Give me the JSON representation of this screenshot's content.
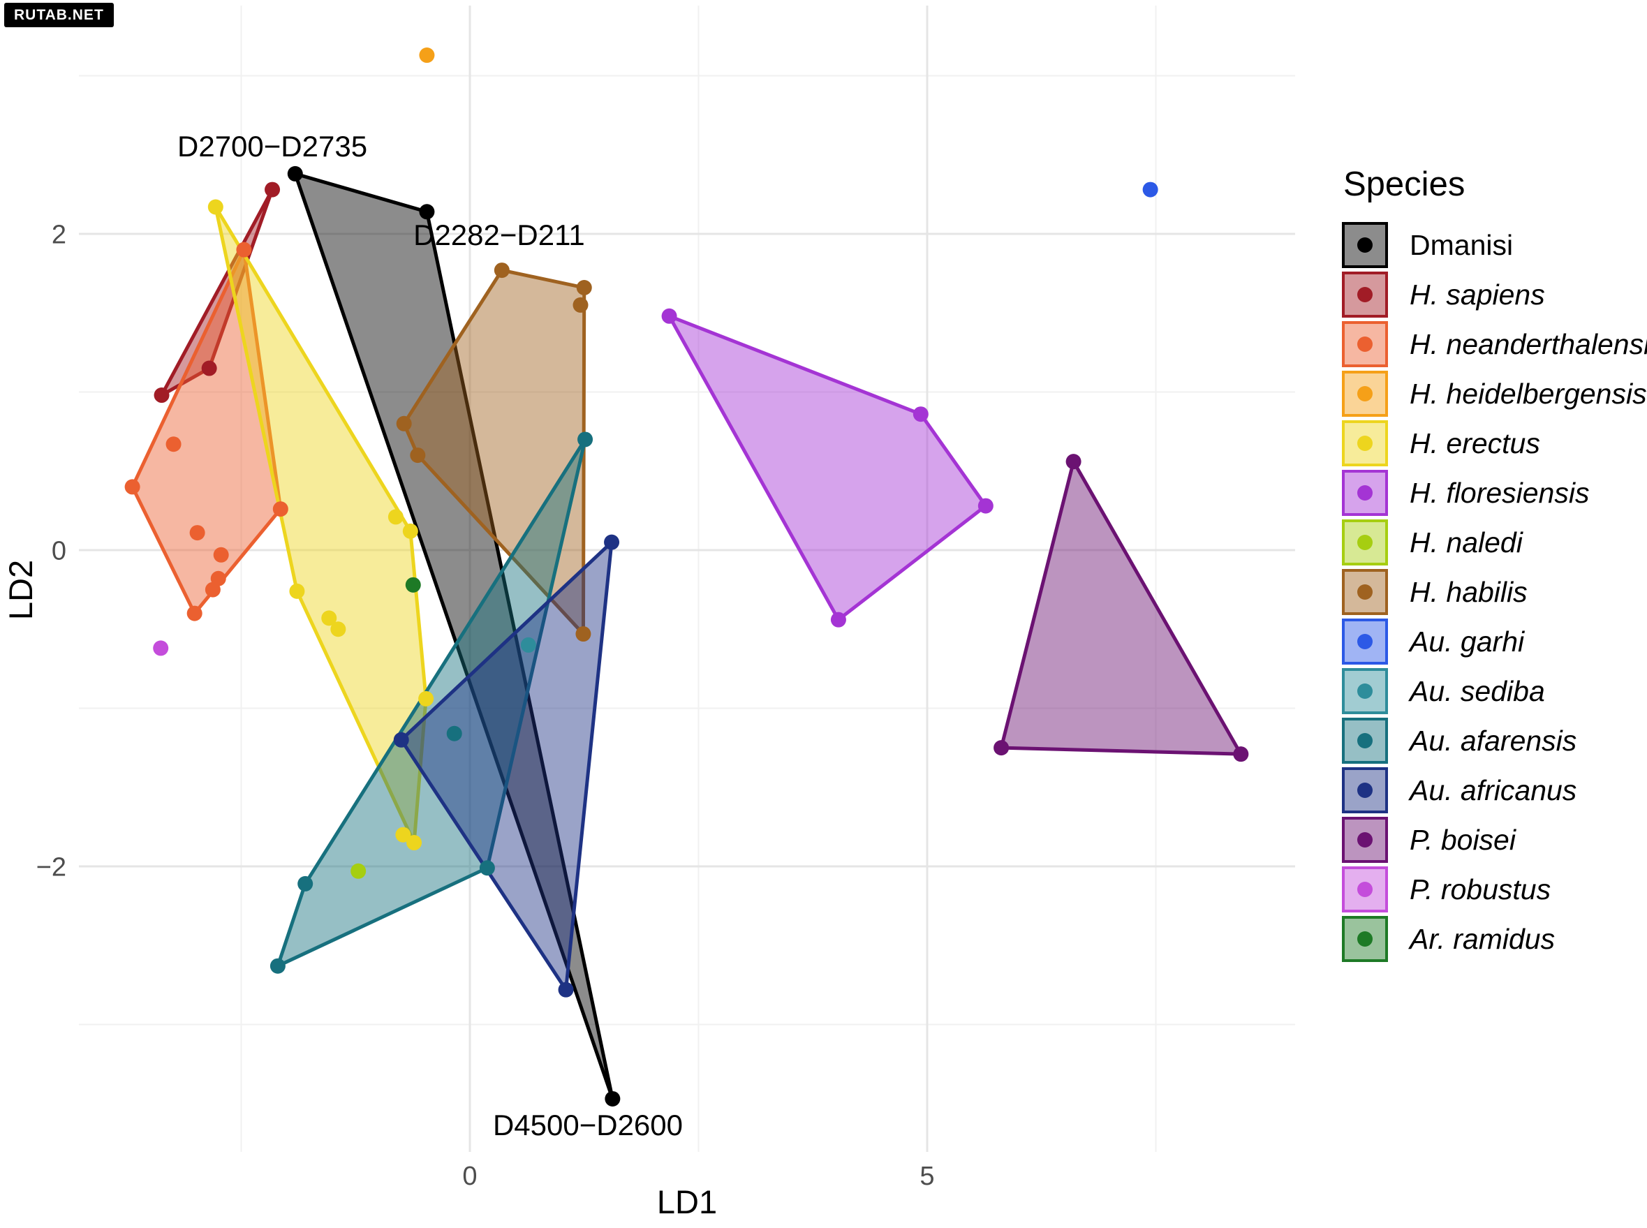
{
  "watermark": {
    "text": "RUTAB.NET",
    "bg": "#000000",
    "fg": "#FFFFFF"
  },
  "chart_data": {
    "type": "scatter",
    "title": "",
    "xlabel": "LD1",
    "ylabel": "LD2",
    "legend_title": "Species",
    "legend_position": "right",
    "grid": true,
    "xlim": [
      -4.3,
      9.0
    ],
    "ylim": [
      -3.8,
      3.45
    ],
    "x_ticks": [
      {
        "value": 0,
        "label": "0"
      },
      {
        "value": 5,
        "label": "5"
      }
    ],
    "y_ticks": [
      {
        "value": 2,
        "label": "2"
      },
      {
        "value": 0,
        "label": "0"
      },
      {
        "value": -2,
        "label": "−2"
      }
    ],
    "x_minor_gridlines": [
      -2.5,
      2.5,
      7.5
    ],
    "y_minor_gridlines": [
      -3,
      -1,
      1,
      3
    ],
    "annotations": [
      {
        "text": "D2700−D2735",
        "x": -2.16,
        "y": 2.49
      },
      {
        "text": "D2282−D211",
        "x": 0.32,
        "y": 1.93
      },
      {
        "text": "D4500−D2600",
        "x": 1.29,
        "y": -3.7
      }
    ],
    "series": [
      {
        "name": "Dmanisi",
        "italic": false,
        "color": "#000000",
        "points": [
          [
            -1.91,
            2.38
          ],
          [
            -0.47,
            2.14
          ],
          [
            1.56,
            -3.47
          ]
        ],
        "hull": [
          [
            -1.91,
            2.38
          ],
          [
            -0.47,
            2.14
          ],
          [
            1.56,
            -3.47
          ]
        ]
      },
      {
        "name": "H. sapiens",
        "italic": true,
        "color": "#A11C26",
        "points": [
          [
            -2.16,
            2.28
          ],
          [
            -2.85,
            1.15
          ],
          [
            -3.37,
            0.98
          ]
        ],
        "hull": [
          [
            -2.16,
            2.28
          ],
          [
            -2.85,
            1.15
          ],
          [
            -3.37,
            0.98
          ]
        ]
      },
      {
        "name": "H. neanderthalensis",
        "italic": true,
        "color": "#EB6030",
        "points": [
          [
            -2.47,
            1.9
          ],
          [
            -2.07,
            0.26
          ],
          [
            -3.01,
            -0.4
          ],
          [
            -3.69,
            0.4
          ],
          [
            -3.24,
            0.67
          ],
          [
            -2.98,
            0.11
          ],
          [
            -2.72,
            -0.03
          ],
          [
            -2.75,
            -0.18
          ],
          [
            -2.81,
            -0.25
          ]
        ],
        "hull": [
          [
            -2.47,
            1.9
          ],
          [
            -2.07,
            0.26
          ],
          [
            -3.01,
            -0.4
          ],
          [
            -3.69,
            0.4
          ]
        ]
      },
      {
        "name": "H. heidelbergensis",
        "italic": true,
        "color": "#F5A018",
        "points": [
          [
            -0.47,
            3.13
          ]
        ],
        "hull": []
      },
      {
        "name": "H. erectus",
        "italic": true,
        "color": "#EDD51E",
        "points": [
          [
            -2.78,
            2.17
          ],
          [
            -0.65,
            0.12
          ],
          [
            -0.48,
            -0.94
          ],
          [
            -0.61,
            -1.85
          ],
          [
            -1.89,
            -0.26
          ],
          [
            -0.81,
            0.21
          ],
          [
            -1.54,
            -0.43
          ],
          [
            -1.44,
            -0.5
          ],
          [
            -0.73,
            -1.8
          ]
        ],
        "hull": [
          [
            -2.78,
            2.17
          ],
          [
            -0.65,
            0.12
          ],
          [
            -0.48,
            -0.94
          ],
          [
            -0.61,
            -1.85
          ],
          [
            -1.89,
            -0.26
          ]
        ]
      },
      {
        "name": "H. floresiensis",
        "italic": true,
        "color": "#A434D4",
        "points": [
          [
            2.18,
            1.48
          ],
          [
            4.93,
            0.86
          ],
          [
            5.64,
            0.28
          ],
          [
            4.03,
            -0.44
          ]
        ],
        "hull": [
          [
            2.18,
            1.48
          ],
          [
            4.93,
            0.86
          ],
          [
            5.64,
            0.28
          ],
          [
            4.03,
            -0.44
          ]
        ]
      },
      {
        "name": "H. naledi",
        "italic": true,
        "color": "#A6CE11",
        "points": [
          [
            -1.22,
            -2.03
          ]
        ],
        "hull": []
      },
      {
        "name": "H. habilis",
        "italic": true,
        "color": "#9F6220",
        "points": [
          [
            0.35,
            1.77
          ],
          [
            1.25,
            1.66
          ],
          [
            1.21,
            1.55
          ],
          [
            1.24,
            -0.53
          ],
          [
            -0.57,
            0.6
          ],
          [
            -0.72,
            0.8
          ]
        ],
        "hull": [
          [
            0.35,
            1.77
          ],
          [
            1.25,
            1.66
          ],
          [
            1.24,
            -0.53
          ],
          [
            -0.57,
            0.6
          ],
          [
            -0.72,
            0.8
          ]
        ]
      },
      {
        "name": "Au. garhi",
        "italic": true,
        "color": "#2C59E6",
        "points": [
          [
            7.44,
            2.28
          ]
        ],
        "hull": []
      },
      {
        "name": "Au. sediba",
        "italic": true,
        "color": "#2E8D9B",
        "points": [
          [
            0.64,
            -0.6
          ]
        ],
        "hull": []
      },
      {
        "name": "Au. afarensis",
        "italic": true,
        "color": "#17707E",
        "points": [
          [
            1.26,
            0.7
          ],
          [
            0.19,
            -2.01
          ],
          [
            -2.1,
            -2.63
          ],
          [
            -1.8,
            -2.11
          ],
          [
            -0.17,
            -1.16
          ]
        ],
        "hull": [
          [
            1.26,
            0.7
          ],
          [
            0.19,
            -2.01
          ],
          [
            -2.1,
            -2.63
          ],
          [
            -1.8,
            -2.11
          ]
        ]
      },
      {
        "name": "Au. africanus",
        "italic": true,
        "color": "#1E3284",
        "points": [
          [
            1.55,
            0.05
          ],
          [
            1.05,
            -2.78
          ],
          [
            -0.75,
            -1.2
          ]
        ],
        "hull": [
          [
            1.55,
            0.05
          ],
          [
            1.05,
            -2.78
          ],
          [
            -0.75,
            -1.2
          ]
        ]
      },
      {
        "name": "P. boisei",
        "italic": true,
        "color": "#6B1272",
        "points": [
          [
            6.6,
            0.56
          ],
          [
            5.81,
            -1.25
          ],
          [
            8.43,
            -1.29
          ]
        ],
        "hull": [
          [
            6.6,
            0.56
          ],
          [
            5.81,
            -1.25
          ],
          [
            8.43,
            -1.29
          ]
        ]
      },
      {
        "name": "P. robustus",
        "italic": true,
        "color": "#C44DDB",
        "points": [
          [
            -3.38,
            -0.62
          ]
        ],
        "hull": []
      },
      {
        "name": "Ar. ramidus",
        "italic": true,
        "color": "#1E7A26",
        "points": [
          [
            -0.62,
            -0.22
          ]
        ],
        "hull": []
      }
    ]
  }
}
